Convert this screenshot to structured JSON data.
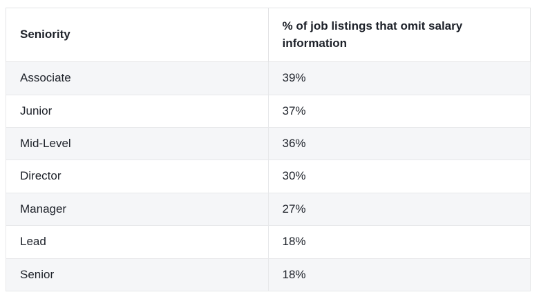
{
  "chart_data": {
    "type": "table",
    "title": "% of job listings that omit salary information by seniority",
    "columns": [
      "Seniority",
      "% of job listings that omit salary information"
    ],
    "rows": [
      [
        "Associate",
        "39%"
      ],
      [
        "Junior",
        "37%"
      ],
      [
        "Mid-Level",
        "36%"
      ],
      [
        "Director",
        "30%"
      ],
      [
        "Manager",
        "27%"
      ],
      [
        "Lead",
        "18%"
      ],
      [
        "Senior",
        "18%"
      ]
    ],
    "layout": {
      "zebra_striping": true,
      "striped_row_color": "#f5f6f8",
      "border_color": "#e2e3e5",
      "text_color": "#1d2129",
      "header_background": "#ffffff"
    }
  }
}
